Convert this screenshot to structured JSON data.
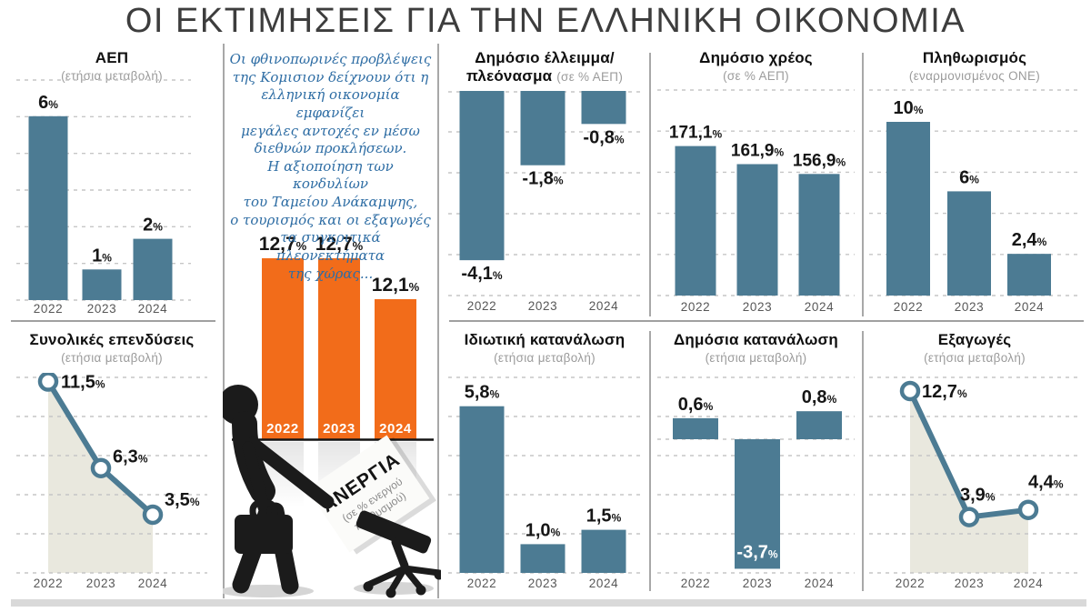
{
  "page_title": "ΟΙ ΕΚΤΙΜΗΣΕΙΣ ΓΙΑ ΤΗΝ ΕΛΛΗΝΙΚΗ ΟΙΚΟΝΟΜΙΑ",
  "colors": {
    "bar_blue": "#4c7b93",
    "bar_orange": "#f26c1a",
    "area_beige": "#e9e8de",
    "note_blue": "#2e6da4",
    "label_dark": "#161616",
    "label_white": "#ffffff",
    "grid_gray": "#c6c6c6",
    "year_gray": "#575757"
  },
  "commission_note": "Οι φθινοπωρινές προβλέψεις\nτης Κομισιον δείχνουν ότι η\nελληνική οικονομία εμφανίζει\nμεγάλες αντοχές εν μέσω\nδιεθνών προκλήσεων.\nΗ αξιοποίηση των κονδυλίων\nτου Ταμείου Ανάκαμψης,\nο τουρισμός και οι εξαγωγές\nτα συγκριτικά πλεονεκτήματα\nτης χώρας...",
  "chart_data": [
    {
      "id": "gdp",
      "type": "bar",
      "title": "ΑΕΠ",
      "subtitle": "(ετήσια μεταβολή)",
      "categories": [
        "2022",
        "2023",
        "2024"
      ],
      "values": [
        6,
        1,
        2
      ],
      "value_labels": [
        "6",
        "1",
        "2"
      ],
      "unit": "%",
      "ylim": [
        0,
        6.5
      ],
      "grid": true
    },
    {
      "id": "unemployment",
      "type": "bar",
      "title": "ΑΝΕΡΓΙΑ",
      "subtitle": "(σε % ενεργού πληθυσμού)",
      "sign_subtitle_line1": "(σε % ενεργού",
      "sign_subtitle_line2": "πληθυσμού)",
      "categories": [
        "2022",
        "2023",
        "2024"
      ],
      "values": [
        12.7,
        12.7,
        12.1
      ],
      "value_labels": [
        "12,7",
        "12,7",
        "12,1"
      ],
      "unit": "%",
      "grid": false
    },
    {
      "id": "deficit",
      "type": "bar",
      "title": "Δημόσιο έλλειμμα/πλεόνασμα",
      "title_line1": "Δημόσιο έλλειμμα/",
      "title_line2": "πλεόνασμα",
      "subtitle": "(σε % ΑΕΠ)",
      "categories": [
        "2022",
        "2023",
        "2024"
      ],
      "values": [
        -4.1,
        -1.8,
        -0.8
      ],
      "value_labels": [
        "-4,1",
        "-1,8",
        "-0,8"
      ],
      "unit": "%",
      "ylim": [
        -5,
        0
      ],
      "grid": true
    },
    {
      "id": "debt",
      "type": "bar",
      "title": "Δημόσιο χρέος",
      "subtitle": "(σε % ΑΕΠ)",
      "categories": [
        "2022",
        "2023",
        "2024"
      ],
      "values": [
        171.1,
        161.9,
        156.9
      ],
      "value_labels": [
        "171,1",
        "161,9",
        "156,9"
      ],
      "unit": "%",
      "ylim": [
        95,
        180
      ],
      "grid": true
    },
    {
      "id": "inflation",
      "type": "bar",
      "title": "Πληθωρισμός",
      "subtitle": "(εναρμονισμένος ΟΝΕ)",
      "categories": [
        "2022",
        "2023",
        "2024"
      ],
      "values": [
        10,
        6,
        2.4
      ],
      "value_labels": [
        "10",
        "6",
        "2,4"
      ],
      "unit": "%",
      "ylim": [
        0,
        11.5
      ],
      "grid": true
    },
    {
      "id": "investments",
      "type": "line",
      "title": "Συνολικές επενδύσεις",
      "subtitle": "(ετήσια μεταβολή)",
      "categories": [
        "2022",
        "2023",
        "2024"
      ],
      "values": [
        11.5,
        6.3,
        3.5
      ],
      "value_labels": [
        "11,5",
        "6,3",
        "3,5"
      ],
      "unit": "%",
      "ylim": [
        0,
        12
      ],
      "grid": true,
      "area_fill": true
    },
    {
      "id": "private_consumption",
      "type": "bar",
      "title": "Ιδιωτική κατανάλωση",
      "subtitle": "(ετήσια μεταβολή)",
      "categories": [
        "2022",
        "2023",
        "2024"
      ],
      "values": [
        5.8,
        1.0,
        1.5
      ],
      "value_labels": [
        "5,8",
        "1,0",
        "1,5"
      ],
      "unit": "%",
      "ylim": [
        0,
        6.5
      ],
      "grid": true
    },
    {
      "id": "public_consumption",
      "type": "bar",
      "title": "Δημόσια κατανάλωση",
      "subtitle": "(ετήσια μεταβολή)",
      "categories": [
        "2022",
        "2023",
        "2024"
      ],
      "values": [
        0.6,
        -3.7,
        0.8
      ],
      "value_labels": [
        "0,6",
        "-3,7",
        "0,8"
      ],
      "unit": "%",
      "ylim": [
        -4.5,
        1.5
      ],
      "grid": true
    },
    {
      "id": "exports",
      "type": "line",
      "title": "Εξαγωγές",
      "subtitle": "(ετήσια μεταβολή)",
      "categories": [
        "2022",
        "2023",
        "2024"
      ],
      "values": [
        12.7,
        3.9,
        4.4
      ],
      "value_labels": [
        "12,7",
        "3,9",
        "4,4"
      ],
      "unit": "%",
      "ylim": [
        0,
        13.5
      ],
      "grid": true,
      "area_fill": true
    }
  ]
}
